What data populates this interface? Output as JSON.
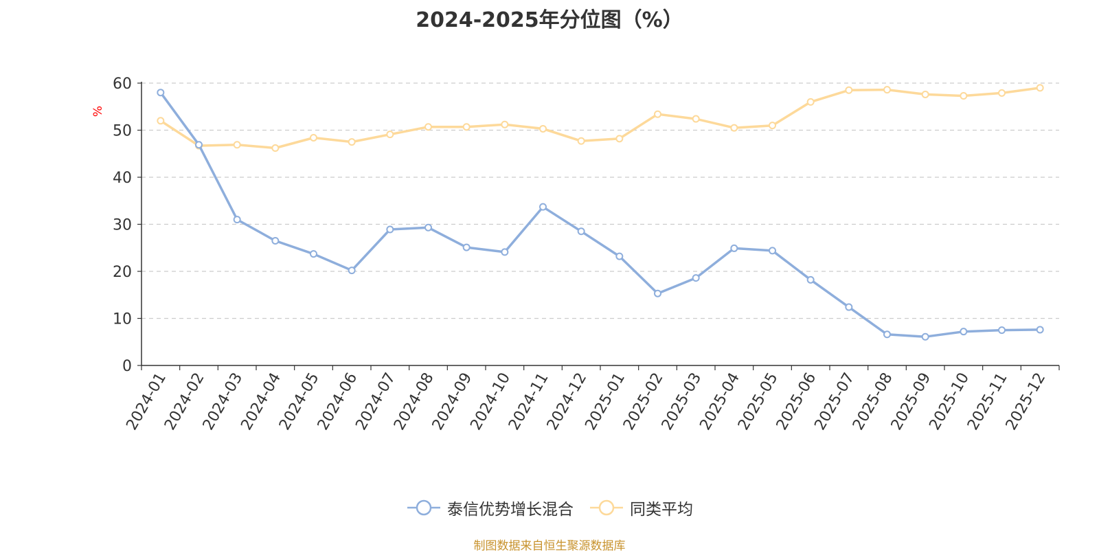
{
  "chart_data": {
    "type": "line",
    "title": "2024-2025年分位图（%）",
    "ylabel": "%",
    "xlabel": "",
    "ylim": [
      0,
      60
    ],
    "yticks": [
      0,
      10,
      20,
      30,
      40,
      50,
      60
    ],
    "grid": true,
    "legend_position": "bottom",
    "categories": [
      "2024-01",
      "2024-02",
      "2024-03",
      "2024-04",
      "2024-05",
      "2024-06",
      "2024-07",
      "2024-08",
      "2024-09",
      "2024-10",
      "2024-11",
      "2024-12",
      "2025-01",
      "2025-02",
      "2025-03",
      "2025-04",
      "2025-05",
      "2025-06",
      "2025-07",
      "2025-08",
      "2025-09",
      "2025-10",
      "2025-11",
      "2025-12"
    ],
    "series": [
      {
        "name": "泰信优势增长混合",
        "color": "#8eaedc",
        "values": [
          58.0,
          46.9,
          31.0,
          26.5,
          23.7,
          20.2,
          28.9,
          29.3,
          25.1,
          24.1,
          33.7,
          28.5,
          23.2,
          15.3,
          18.6,
          24.9,
          24.4,
          18.2,
          12.4,
          6.6,
          6.1,
          7.2,
          7.5,
          7.6
        ]
      },
      {
        "name": "同类平均",
        "color": "#fdd99a",
        "values": [
          52.0,
          46.7,
          46.9,
          46.2,
          48.4,
          47.5,
          49.1,
          50.7,
          50.7,
          51.2,
          50.3,
          47.7,
          48.2,
          53.4,
          52.4,
          50.5,
          51.0,
          56.0,
          58.5,
          58.6,
          57.6,
          57.3,
          57.9,
          59.0
        ]
      }
    ]
  },
  "source_text": "制图数据来自恒生聚源数据库",
  "colors": {
    "axis": "#333333",
    "grid": "#cccccc",
    "ylabel": "#ff0000",
    "source": "#c8932e"
  }
}
